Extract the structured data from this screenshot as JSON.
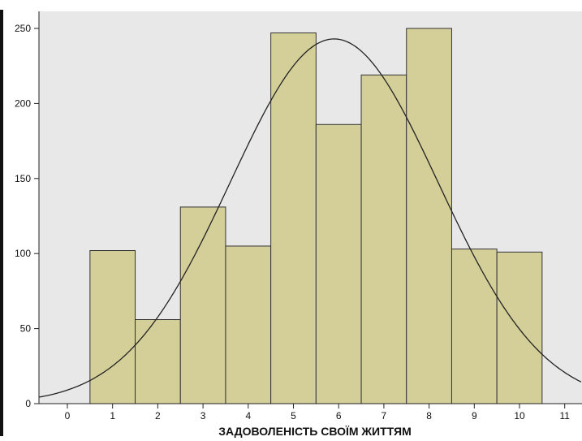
{
  "chart_data": {
    "type": "bar",
    "subtype": "histogram",
    "xlabel": "ЗАДОВОЛЕНІСТЬ СВОЇМ ЖИТТЯМ",
    "ylabel": "",
    "categories": [
      "1",
      "2",
      "3",
      "4",
      "5",
      "6",
      "7",
      "8",
      "9",
      "10"
    ],
    "values": [
      102,
      56,
      131,
      105,
      247,
      186,
      219,
      250,
      103,
      101
    ],
    "xlim": [
      -0.5,
      11.5
    ],
    "ylim": [
      0,
      260
    ],
    "x_ticks": [
      "0",
      "1",
      "2",
      "3",
      "4",
      "5",
      "6",
      "7",
      "8",
      "9",
      "10",
      "11"
    ],
    "y_ticks": [
      "0",
      "50",
      "100",
      "150",
      "200",
      "250"
    ],
    "grid": false,
    "legend": "none",
    "normal_curve": {
      "mean": 5.9,
      "peak": 243,
      "std": 2.3
    },
    "colors": {
      "plot_background": "#e8e8e8",
      "bar_fill": "#d4cf99",
      "bar_edge": "#333333",
      "curve": "#222222"
    }
  }
}
